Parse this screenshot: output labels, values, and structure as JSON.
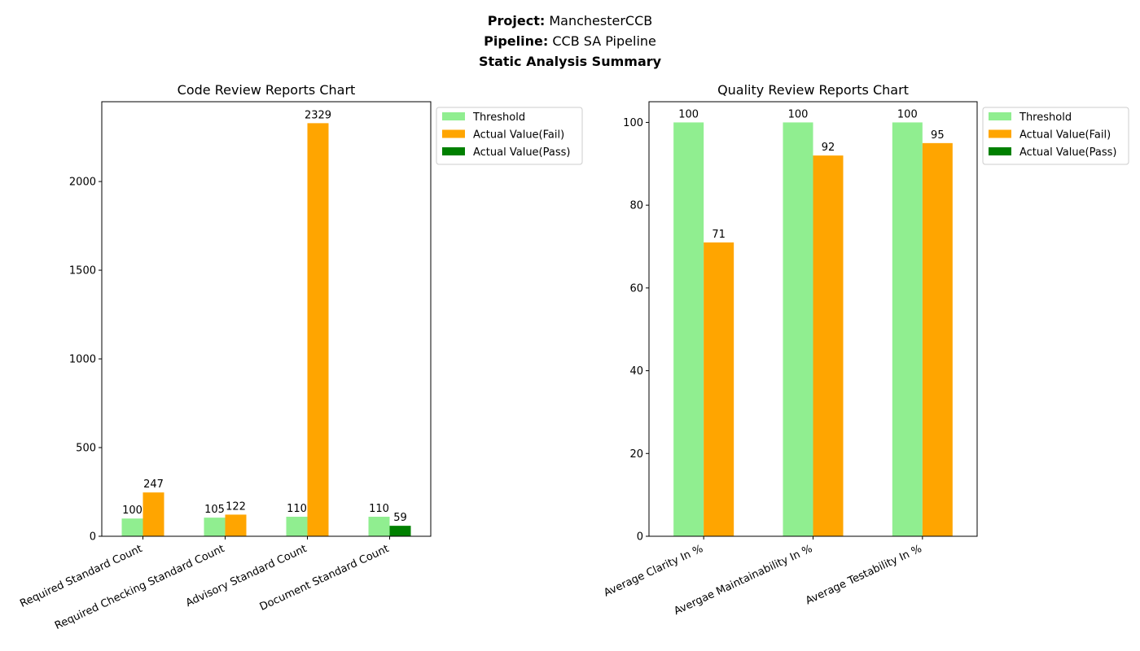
{
  "header": {
    "project_label": "Project",
    "project_value": "ManchesterCCB",
    "pipeline_label": "Pipeline",
    "pipeline_value": "CCB SA Pipeline",
    "summary_title": "Static Analysis Summary",
    "separator": ":"
  },
  "colors": {
    "threshold": "#90ee90",
    "fail": "#ffa500",
    "pass": "#008000"
  },
  "chart_data": [
    {
      "type": "bar",
      "title": "Code Review Reports Chart",
      "categories": [
        "Required Standard Count",
        "Required Checking Standard Count",
        "Advisory Standard Count",
        "Document Standard Count"
      ],
      "ylim": [
        0,
        2450
      ],
      "yticks": [
        0,
        500,
        1000,
        1500,
        2000
      ],
      "legend": [
        "Threshold",
        "Actual Value(Fail)",
        "Actual Value(Pass)"
      ],
      "legend_position": "outside-top-right",
      "series": [
        {
          "name": "Threshold",
          "values": [
            100,
            105,
            110,
            110
          ],
          "colors": [
            "threshold",
            "threshold",
            "threshold",
            "threshold"
          ]
        },
        {
          "name": "Actual Value",
          "values": [
            247,
            122,
            2329,
            59
          ],
          "colors": [
            "fail",
            "fail",
            "fail",
            "pass"
          ]
        }
      ]
    },
    {
      "type": "bar",
      "title": "Quality Review Reports Chart",
      "categories": [
        "Average Clarity In %",
        "Avergae Maintainability In %",
        "Average Testability In %"
      ],
      "ylim": [
        0,
        105
      ],
      "yticks": [
        0,
        20,
        40,
        60,
        80,
        100
      ],
      "legend": [
        "Threshold",
        "Actual Value(Fail)",
        "Actual Value(Pass)"
      ],
      "legend_position": "outside-top-right",
      "series": [
        {
          "name": "Threshold",
          "values": [
            100,
            100,
            100
          ],
          "colors": [
            "threshold",
            "threshold",
            "threshold"
          ]
        },
        {
          "name": "Actual Value",
          "values": [
            71,
            92,
            95
          ],
          "colors": [
            "fail",
            "fail",
            "fail"
          ]
        }
      ]
    }
  ]
}
